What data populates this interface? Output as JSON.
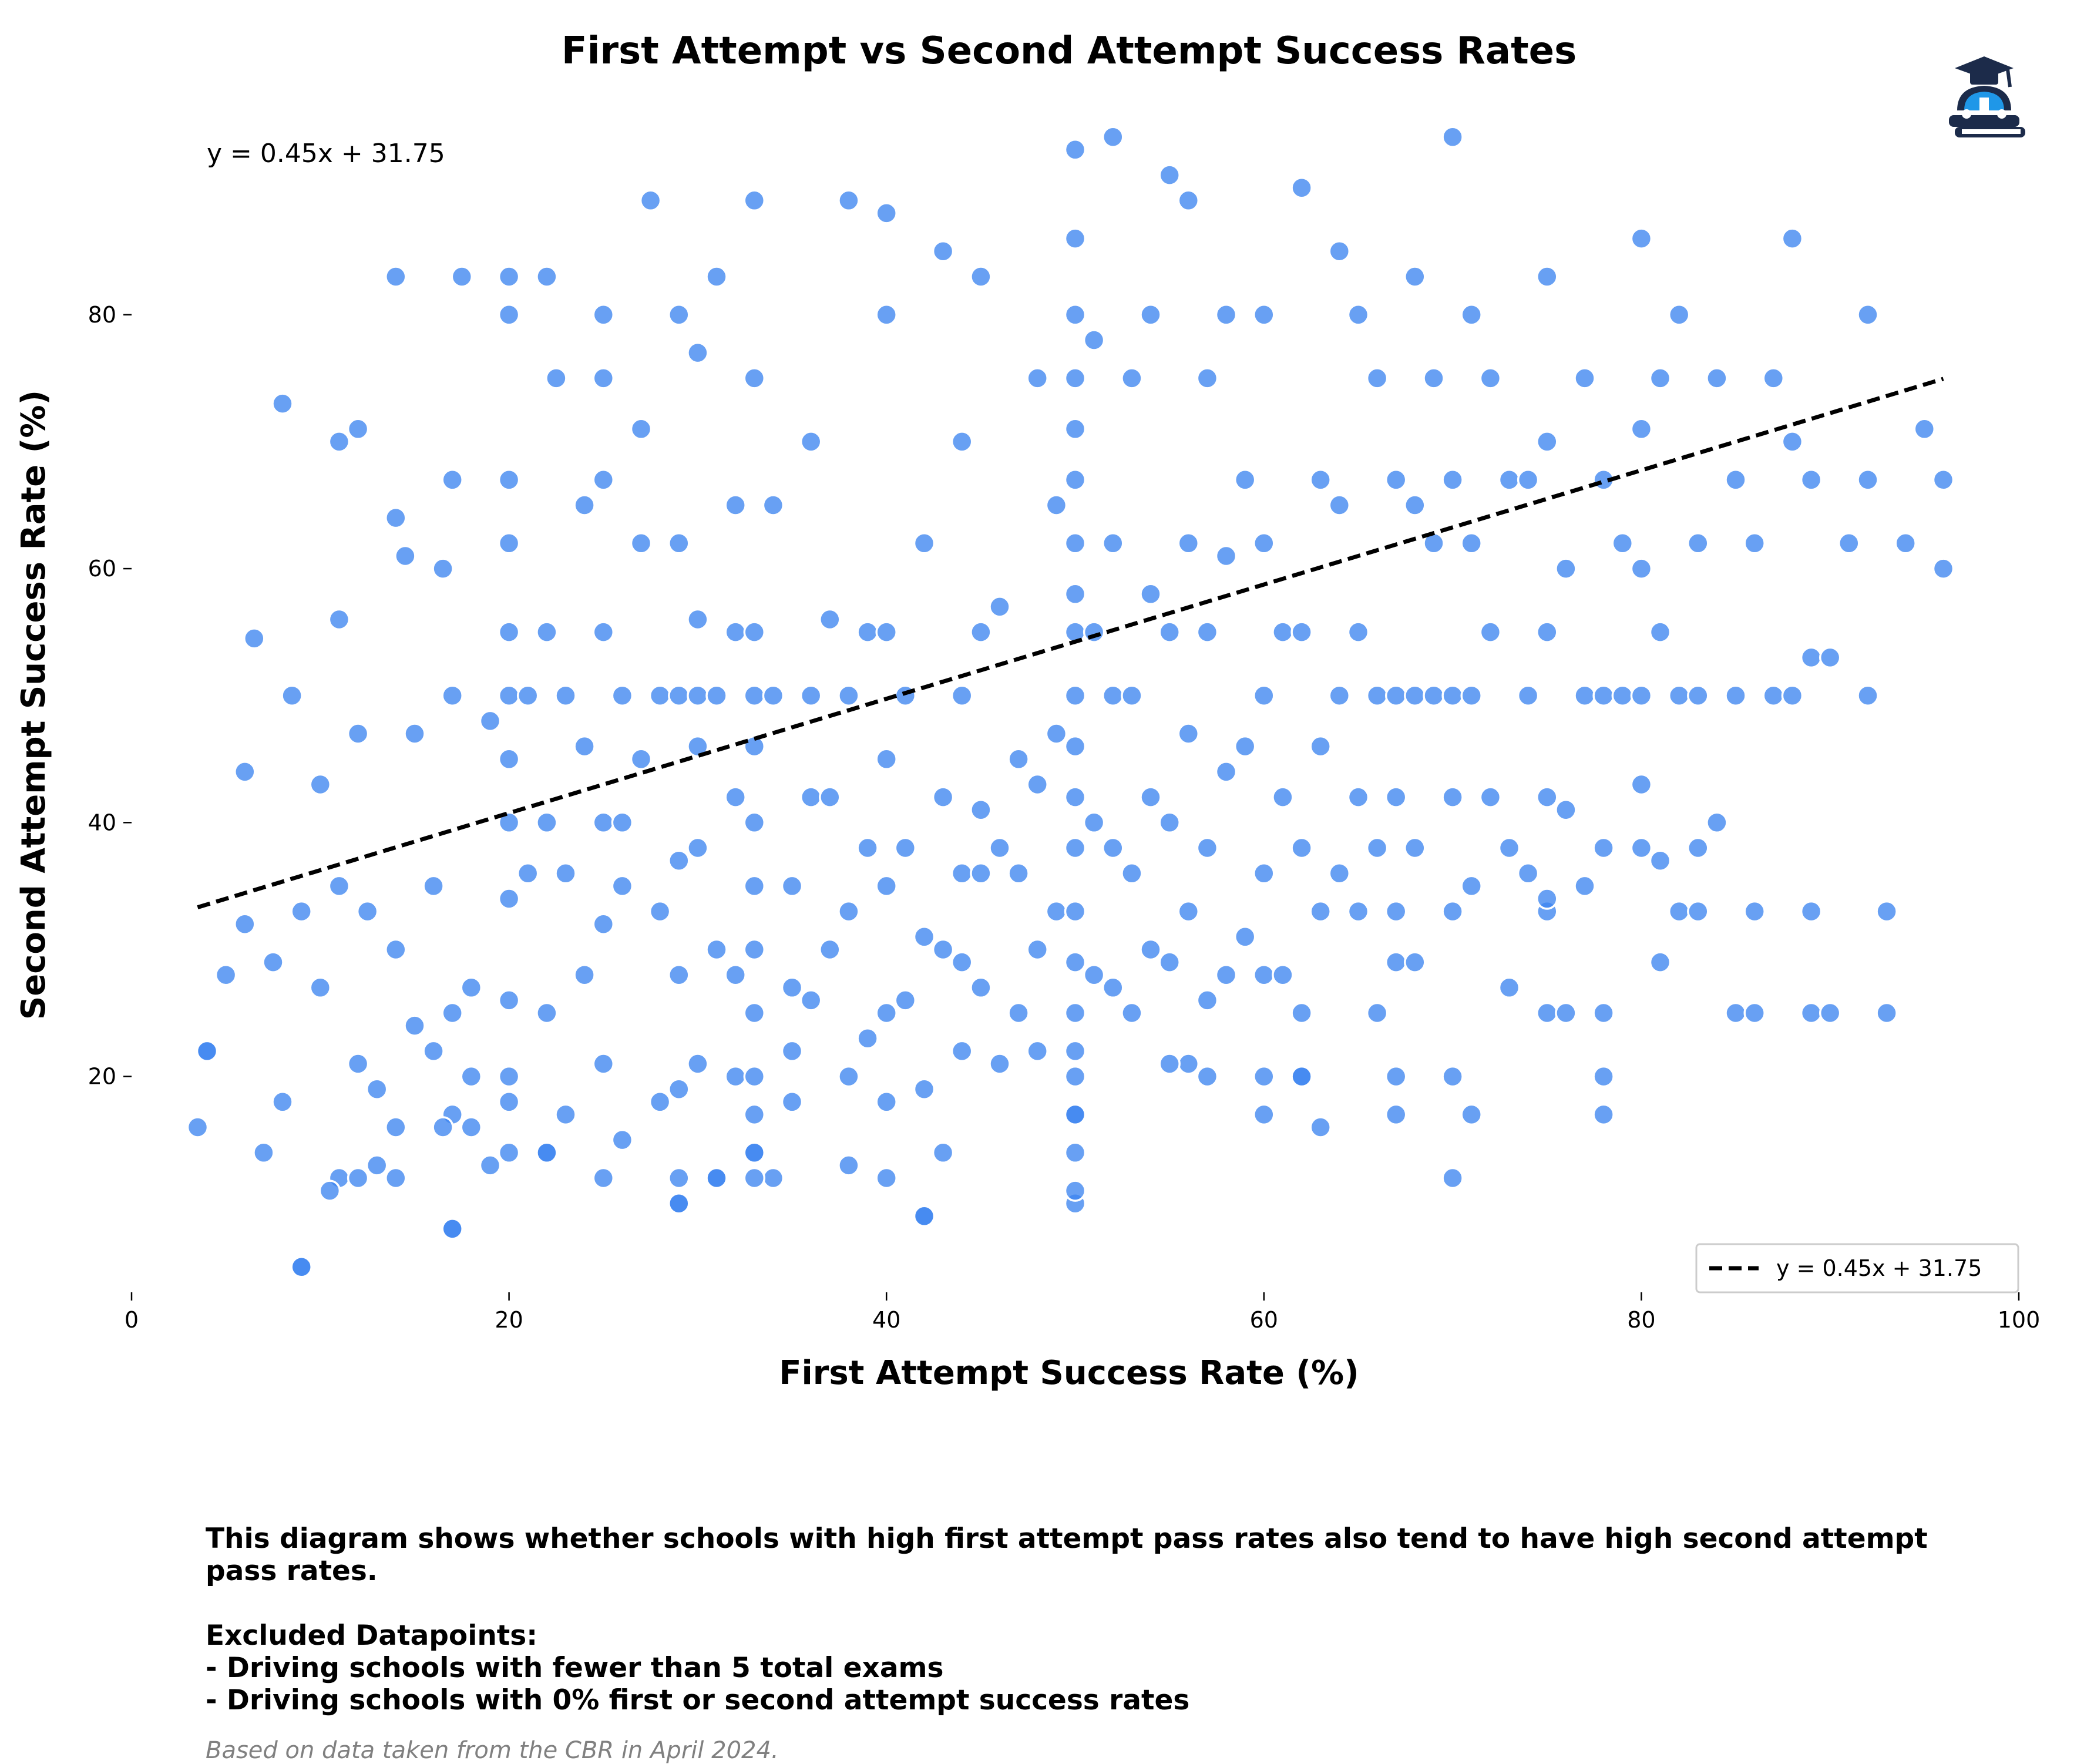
{
  "chart_data": {
    "type": "scatter",
    "title": "First Attempt vs Second Attempt Success Rates",
    "xlabel": "First Attempt Success Rate (%)",
    "ylabel": "Second Attempt Success Rate (%)",
    "xlim": [
      0,
      100
    ],
    "ylim": [
      3,
      96
    ],
    "x_ticks": [
      "0",
      "20",
      "40",
      "60",
      "80",
      "100"
    ],
    "y_ticks": [
      "20",
      "40",
      "60",
      "80"
    ],
    "grid": false,
    "legend_position": "bottom-right",
    "equation_annotation": "y = 0.45x + 31.75",
    "trendline": {
      "name": "y = 0.45x + 31.75",
      "slope": 0.45,
      "intercept": 31.75,
      "x_range": [
        3.5,
        96
      ],
      "style": "dashed",
      "color": "#000000"
    },
    "point_color": "#3d85f0",
    "points_x": [
      3.5,
      4,
      5,
      6,
      6,
      6.5,
      7,
      7.5,
      8,
      8,
      8.5,
      9,
      9,
      10,
      10,
      11,
      11,
      11,
      11,
      12,
      12,
      12,
      12.5,
      13,
      13,
      14,
      14,
      14,
      14,
      14.5,
      15,
      15,
      16,
      16,
      16.5,
      17,
      17,
      17,
      17,
      17,
      17.5,
      18,
      18,
      19,
      19,
      20,
      20,
      20,
      20,
      20,
      20,
      20,
      20,
      20,
      20,
      20,
      20,
      21,
      21,
      22,
      22,
      22,
      22,
      22,
      22.5,
      23,
      23,
      23,
      24,
      24,
      24,
      25,
      25,
      25,
      25,
      25,
      25,
      25,
      25,
      26,
      26,
      26,
      27,
      27,
      27,
      27.5,
      28,
      28,
      28,
      29,
      29,
      29,
      29,
      29,
      29,
      29,
      29,
      30,
      30,
      30,
      30,
      30,
      30,
      31,
      31,
      31,
      31,
      32,
      32,
      32,
      32,
      32,
      33,
      33,
      33,
      33,
      33,
      33,
      33,
      33,
      33,
      33,
      33,
      33,
      34,
      34,
      34,
      35,
      35,
      35,
      36,
      36,
      36,
      36,
      37,
      37,
      37,
      38,
      38,
      38,
      38,
      38,
      39,
      39,
      39,
      40,
      40,
      40,
      40,
      40,
      40,
      40,
      40,
      41,
      41,
      41,
      42,
      42,
      42,
      42,
      43,
      43,
      43,
      43,
      44,
      44,
      44,
      44,
      45,
      45,
      45,
      45,
      46,
      46,
      46,
      47,
      47,
      47,
      48,
      48,
      48,
      49,
      49,
      49,
      50,
      50,
      50,
      50,
      50,
      50,
      50,
      50,
      50,
      50,
      50,
      50,
      50,
      50,
      50,
      50,
      50,
      50,
      50,
      50,
      51,
      51,
      51,
      51,
      52,
      52,
      52,
      52,
      52,
      53,
      53,
      53,
      53,
      54,
      54,
      54,
      54,
      55,
      55,
      55,
      55,
      56,
      56,
      56,
      56,
      56,
      57,
      57,
      57,
      57,
      58,
      58,
      58,
      58,
      59,
      59,
      59,
      60,
      60,
      60,
      60,
      60,
      60,
      60,
      61,
      61,
      61,
      62,
      62,
      62,
      62,
      62,
      63,
      63,
      63,
      64,
      64,
      64,
      64,
      65,
      65,
      65,
      65,
      66,
      66,
      66,
      66,
      67,
      67,
      67,
      67,
      67,
      67,
      67,
      68,
      68,
      68,
      68,
      68,
      69,
      69,
      69,
      70,
      70,
      70,
      70,
      70,
      70,
      70,
      71,
      71,
      71,
      71,
      72,
      72,
      72,
      73,
      73,
      73,
      74,
      74,
      74,
      75,
      75,
      75,
      75,
      75,
      75,
      76,
      76,
      76,
      77,
      77,
      77,
      78,
      78,
      78,
      78,
      78,
      78,
      79,
      79,
      80,
      80,
      80,
      80,
      80,
      80,
      81,
      81,
      81,
      82,
      82,
      82,
      83,
      83,
      83,
      83,
      84,
      84,
      85,
      85,
      85,
      86,
      86,
      86,
      87,
      87,
      88,
      88,
      88,
      89,
      89,
      89,
      89,
      90,
      90,
      91,
      92,
      92,
      92,
      93,
      93,
      94,
      95,
      96,
      96,
      33,
      33,
      50,
      50,
      50,
      42,
      29,
      31,
      17,
      9,
      4,
      16.5,
      20,
      22,
      10.5,
      12,
      14,
      18,
      26,
      35,
      45,
      48,
      55,
      62,
      71,
      44,
      57,
      63,
      75,
      81
    ],
    "points_y": [
      16,
      22,
      28,
      32,
      44,
      54.5,
      14,
      29,
      18,
      73,
      50,
      5,
      33,
      27,
      43,
      12,
      35,
      56,
      70,
      21,
      47,
      71,
      33,
      13,
      19,
      16,
      30,
      64,
      83,
      61,
      24,
      47,
      35,
      22,
      60,
      8,
      17,
      25,
      50,
      67,
      83,
      16,
      27,
      48,
      13,
      14,
      20,
      26,
      34,
      40,
      45,
      50,
      55,
      62,
      67,
      80,
      83,
      36,
      50,
      14,
      25,
      40,
      55,
      83,
      75,
      17,
      36,
      50,
      28,
      46,
      65,
      12,
      21,
      32,
      40,
      55,
      67,
      75,
      80,
      15,
      35,
      50,
      45,
      62,
      71,
      89,
      18,
      33,
      50,
      10,
      12,
      19,
      28,
      37,
      50,
      62,
      80,
      21,
      38,
      46,
      50,
      56,
      77,
      12,
      30,
      50,
      83,
      20,
      28,
      42,
      55,
      65,
      14,
      17,
      20,
      25,
      30,
      35,
      40,
      46,
      50,
      55,
      75,
      89,
      12,
      50,
      65,
      18,
      22,
      35,
      26,
      42,
      50,
      70,
      30,
      42,
      56,
      13,
      20,
      33,
      50,
      89,
      23,
      38,
      55,
      12,
      18,
      25,
      35,
      45,
      55,
      80,
      88,
      26,
      38,
      50,
      9,
      19,
      31,
      62,
      14,
      30,
      42,
      85,
      22,
      36,
      50,
      70,
      27,
      41,
      55,
      83,
      21,
      38,
      57,
      25,
      36,
      45,
      30,
      43,
      75,
      33,
      47,
      65,
      10,
      11,
      17,
      22,
      25,
      29,
      33,
      38,
      42,
      46,
      50,
      55,
      58,
      62,
      67,
      71,
      75,
      80,
      86,
      93,
      28,
      40,
      55,
      78,
      27,
      38,
      50,
      62,
      94,
      25,
      36,
      50,
      75,
      30,
      42,
      58,
      80,
      29,
      40,
      55,
      91,
      21,
      33,
      47,
      62,
      89,
      26,
      38,
      55,
      75,
      28,
      44,
      61,
      80,
      31,
      46,
      67,
      17,
      20,
      28,
      36,
      50,
      62,
      80,
      28,
      42,
      55,
      20,
      25,
      38,
      55,
      90,
      33,
      46,
      67,
      36,
      50,
      65,
      85,
      33,
      42,
      55,
      80,
      25,
      38,
      50,
      75,
      17,
      20,
      29,
      33,
      42,
      50,
      67,
      29,
      38,
      50,
      65,
      83,
      50,
      62,
      75,
      12,
      20,
      33,
      42,
      50,
      67,
      94,
      35,
      50,
      62,
      80,
      42,
      55,
      75,
      27,
      38,
      67,
      36,
      50,
      67,
      25,
      33,
      42,
      55,
      70,
      83,
      25,
      41,
      60,
      35,
      50,
      75,
      17,
      20,
      25,
      38,
      50,
      67,
      50,
      62,
      38,
      43,
      50,
      60,
      71,
      86,
      29,
      55,
      75,
      33,
      50,
      80,
      33,
      38,
      50,
      62,
      40,
      75,
      25,
      50,
      67,
      25,
      33,
      62,
      50,
      75,
      50,
      70,
      86,
      25,
      33,
      53,
      67,
      25,
      53,
      62,
      50,
      67,
      80,
      25,
      33,
      62,
      71,
      60,
      67,
      12,
      14,
      14,
      17,
      20,
      9,
      10,
      12,
      8,
      5,
      22,
      16,
      18,
      14,
      11,
      12,
      12,
      20,
      40,
      27,
      36,
      22,
      21,
      20,
      17,
      29,
      20,
      16,
      34,
      37
    ]
  },
  "logo": {
    "icon": "driving-school-logo-icon",
    "colors": [
      "#1c2b4a",
      "#1f97e8"
    ]
  },
  "description": {
    "line1": "This diagram shows whether schools with high first attempt pass rates also tend to have high second attempt pass rates.",
    "line2": "Excluded Datapoints:",
    "line3": "- Driving schools with fewer than 5 total exams",
    "line4": "- Driving schools with 0% first or second attempt success rates"
  },
  "source_note": "Based on data taken from the CBR in April 2024."
}
